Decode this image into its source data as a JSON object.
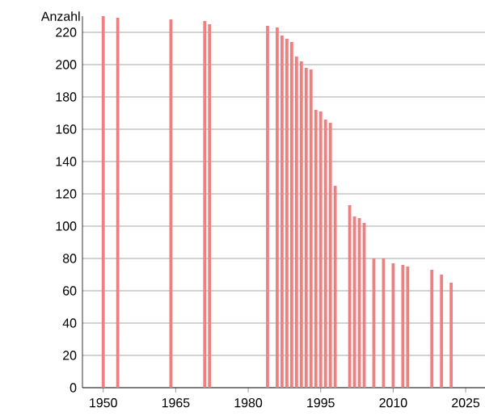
{
  "chart_data": {
    "type": "bar",
    "ylabel": "Anzahl",
    "x": [
      1950,
      1953,
      1964,
      1971,
      1972,
      1984,
      1986,
      1987,
      1988,
      1989,
      1990,
      1991,
      1992,
      1993,
      1994,
      1995,
      1996,
      1997,
      1998,
      2001,
      2002,
      2003,
      2004,
      2006,
      2008,
      2010,
      2012,
      2013,
      2018,
      2020,
      2022
    ],
    "values": [
      230,
      229,
      228,
      227,
      225,
      224,
      223,
      218,
      216,
      214,
      205,
      202,
      198,
      197,
      172,
      171,
      166,
      164,
      125,
      113,
      106,
      105,
      102,
      80,
      80,
      77,
      76,
      75,
      73,
      70,
      65
    ],
    "color": "#f08080",
    "xlim": [
      1945.7,
      2029
    ],
    "ylim": [
      0,
      230
    ],
    "xticks": [
      1950,
      1965,
      1980,
      1995,
      2010,
      2025
    ],
    "yticks": [
      0,
      20,
      40,
      60,
      80,
      100,
      120,
      140,
      160,
      180,
      200,
      220
    ],
    "grid": "y"
  }
}
